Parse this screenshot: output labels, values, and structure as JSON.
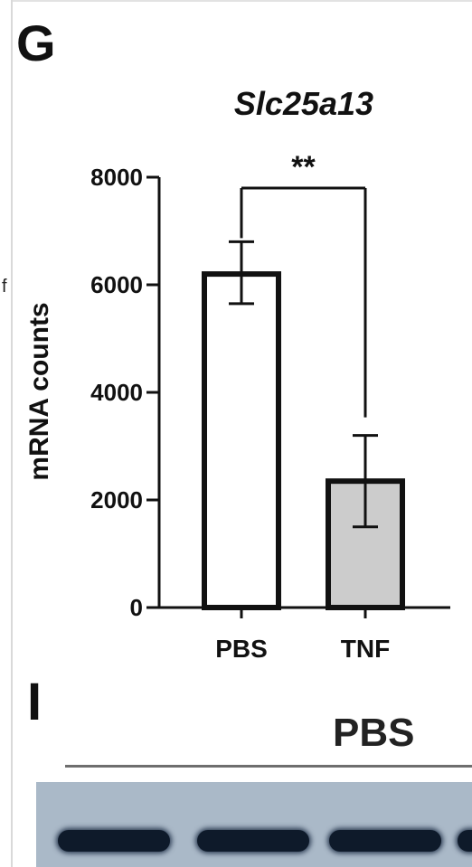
{
  "panels": {
    "g_label": "G",
    "i_label": "I"
  },
  "stray_text": "f",
  "chart_data": {
    "type": "bar",
    "title": "Slc25a13",
    "ylabel": "mRNA counts",
    "xlabel": "",
    "categories": [
      "PBS",
      "TNF"
    ],
    "values": [
      6200,
      2350
    ],
    "errors": [
      {
        "low": 5650,
        "high": 6800
      },
      {
        "low": 1500,
        "high": 3200
      }
    ],
    "ylim": [
      0,
      8000
    ],
    "yticks": [
      "0",
      "2000",
      "4000",
      "6000",
      "8000"
    ],
    "ytick_values": [
      0,
      2000,
      4000,
      6000,
      8000
    ],
    "significance": "**",
    "bar_colors": [
      "#ffffff",
      "#cccccc"
    ],
    "grid": false,
    "legend": "none"
  },
  "blot": {
    "header": "PBS",
    "colors": {
      "background": "#aab9c8",
      "band": "#0e1a2a"
    }
  }
}
